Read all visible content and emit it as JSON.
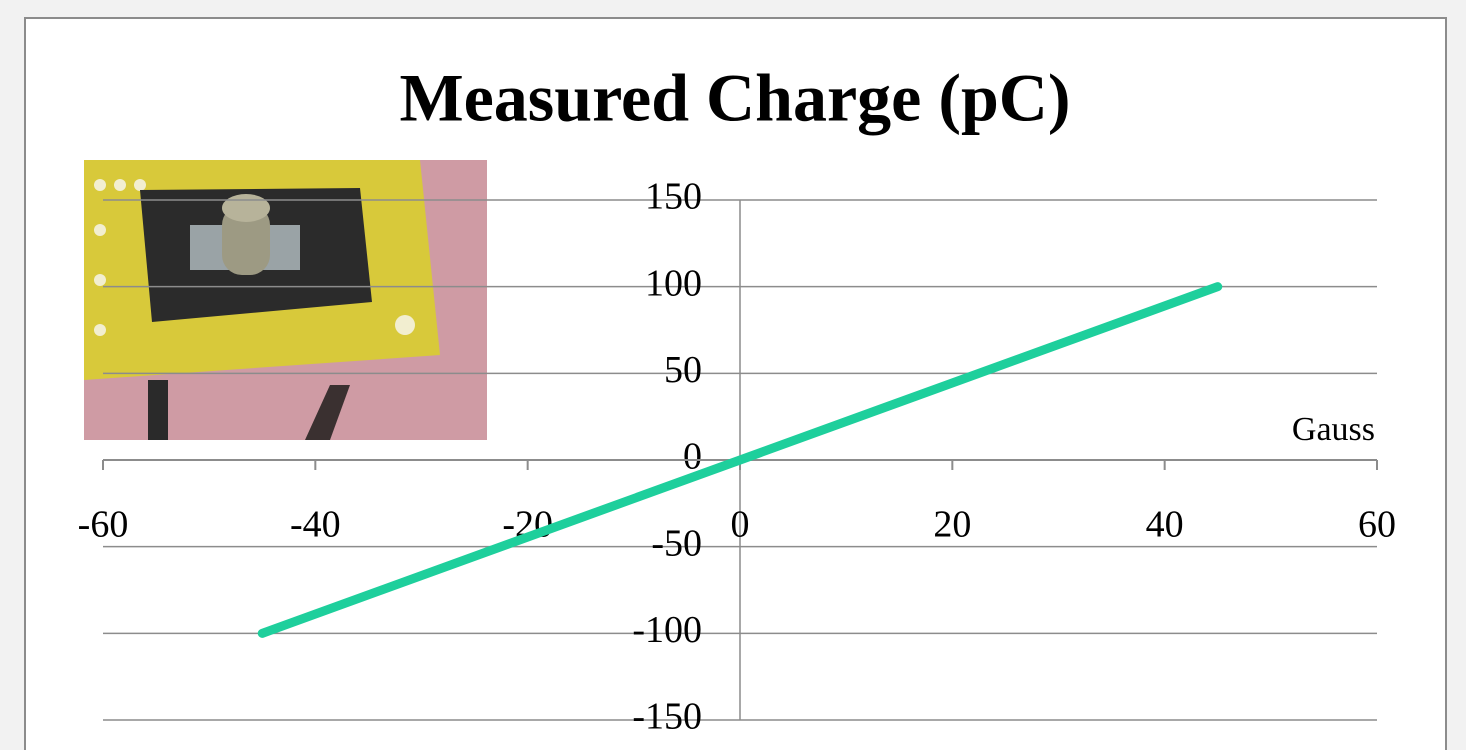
{
  "chart_data": {
    "type": "line",
    "title": "Measured Charge (pC)",
    "x_label": "Gauss",
    "x": [
      -45,
      45
    ],
    "values": [
      -100,
      100
    ],
    "color": "#1ecf9c",
    "xlim": [
      -60,
      60
    ],
    "xticks": [
      -60,
      -40,
      -20,
      0,
      20,
      40,
      60
    ],
    "ylim": [
      -150,
      150
    ],
    "yticks": [
      -150,
      -100,
      -50,
      0,
      50,
      100,
      150
    ],
    "grid": true
  }
}
